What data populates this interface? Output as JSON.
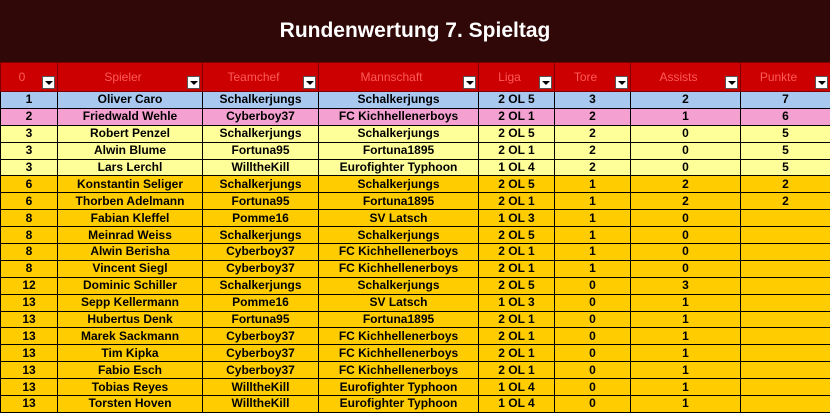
{
  "title": "Rundenwertung 7. Spieltag",
  "columns": [
    "0",
    "Spieler",
    "Teamchef",
    "Mannschaft",
    "Liga",
    "Tore",
    "Assists",
    "Punkte"
  ],
  "colors": {
    "title_bg": "#300808",
    "header_bg": "#cc0000",
    "header_text": "#ff5a5a",
    "first": "#a8c8f0",
    "second": "#f4a0d0",
    "third": "#ffff99",
    "rest": "#ffcc00"
  },
  "rows": [
    {
      "rank": "1",
      "player": "Oliver Caro",
      "teamchef": "Schalkerjungs",
      "team": "Schalkerjungs",
      "liga": "2 OL 5",
      "tore": "3",
      "assists": "2",
      "punkte": "7",
      "tier": "blue"
    },
    {
      "rank": "2",
      "player": "Friedwald Wehle",
      "teamchef": "Cyberboy37",
      "team": "FC Kichhellenerboys",
      "liga": "2 OL 1",
      "tore": "2",
      "assists": "1",
      "punkte": "6",
      "tier": "pink"
    },
    {
      "rank": "3",
      "player": "Robert Penzel",
      "teamchef": "Schalkerjungs",
      "team": "Schalkerjungs",
      "liga": "2 OL 5",
      "tore": "2",
      "assists": "0",
      "punkte": "5",
      "tier": "yellow"
    },
    {
      "rank": "3",
      "player": "Alwin Blume",
      "teamchef": "Fortuna95",
      "team": "Fortuna1895",
      "liga": "2 OL 1",
      "tore": "2",
      "assists": "0",
      "punkte": "5",
      "tier": "yellow"
    },
    {
      "rank": "3",
      "player": "Lars Lerchl",
      "teamchef": "WilltheKill",
      "team": "Eurofighter Typhoon",
      "liga": "1 OL 4",
      "tore": "2",
      "assists": "0",
      "punkte": "5",
      "tier": "yellow"
    },
    {
      "rank": "6",
      "player": "Konstantin Seliger",
      "teamchef": "Schalkerjungs",
      "team": "Schalkerjungs",
      "liga": "2 OL 5",
      "tore": "1",
      "assists": "2",
      "punkte": "2",
      "tier": "orange"
    },
    {
      "rank": "6",
      "player": "Thorben Adelmann",
      "teamchef": "Fortuna95",
      "team": "Fortuna1895",
      "liga": "2 OL 1",
      "tore": "1",
      "assists": "2",
      "punkte": "2",
      "tier": "orange"
    },
    {
      "rank": "8",
      "player": "Fabian Kleffel",
      "teamchef": "Pomme16",
      "team": "SV Latsch",
      "liga": "1 OL 3",
      "tore": "1",
      "assists": "0",
      "punkte": "",
      "tier": "orange"
    },
    {
      "rank": "8",
      "player": "Meinrad Weiss",
      "teamchef": "Schalkerjungs",
      "team": "Schalkerjungs",
      "liga": "2 OL 5",
      "tore": "1",
      "assists": "0",
      "punkte": "",
      "tier": "orange"
    },
    {
      "rank": "8",
      "player": "Alwin Berisha",
      "teamchef": "Cyberboy37",
      "team": "FC Kichhellenerboys",
      "liga": "2 OL 1",
      "tore": "1",
      "assists": "0",
      "punkte": "",
      "tier": "orange"
    },
    {
      "rank": "8",
      "player": "Vincent Siegl",
      "teamchef": "Cyberboy37",
      "team": "FC Kichhellenerboys",
      "liga": "2 OL 1",
      "tore": "1",
      "assists": "0",
      "punkte": "",
      "tier": "orange"
    },
    {
      "rank": "12",
      "player": "Dominic Schiller",
      "teamchef": "Schalkerjungs",
      "team": "Schalkerjungs",
      "liga": "2 OL 5",
      "tore": "0",
      "assists": "3",
      "punkte": "",
      "tier": "orange"
    },
    {
      "rank": "13",
      "player": "Sepp Kellermann",
      "teamchef": "Pomme16",
      "team": "SV Latsch",
      "liga": "1 OL 3",
      "tore": "0",
      "assists": "1",
      "punkte": "",
      "tier": "orange"
    },
    {
      "rank": "13",
      "player": "Hubertus Denk",
      "teamchef": "Fortuna95",
      "team": "Fortuna1895",
      "liga": "2 OL 1",
      "tore": "0",
      "assists": "1",
      "punkte": "",
      "tier": "orange"
    },
    {
      "rank": "13",
      "player": "Marek Sackmann",
      "teamchef": "Cyberboy37",
      "team": "FC Kichhellenerboys",
      "liga": "2 OL 1",
      "tore": "0",
      "assists": "1",
      "punkte": "",
      "tier": "orange"
    },
    {
      "rank": "13",
      "player": "Tim Kipka",
      "teamchef": "Cyberboy37",
      "team": "FC Kichhellenerboys",
      "liga": "2 OL 1",
      "tore": "0",
      "assists": "1",
      "punkte": "",
      "tier": "orange"
    },
    {
      "rank": "13",
      "player": "Fabio Esch",
      "teamchef": "Cyberboy37",
      "team": "FC Kichhellenerboys",
      "liga": "2 OL 1",
      "tore": "0",
      "assists": "1",
      "punkte": "",
      "tier": "orange"
    },
    {
      "rank": "13",
      "player": "Tobias Reyes",
      "teamchef": "WilltheKill",
      "team": "Eurofighter Typhoon",
      "liga": "1 OL 4",
      "tore": "0",
      "assists": "1",
      "punkte": "",
      "tier": "orange"
    },
    {
      "rank": "13",
      "player": "Torsten Hoven",
      "teamchef": "WilltheKill",
      "team": "Eurofighter Typhoon",
      "liga": "1 OL 4",
      "tore": "0",
      "assists": "1",
      "punkte": "",
      "tier": "orange"
    }
  ]
}
